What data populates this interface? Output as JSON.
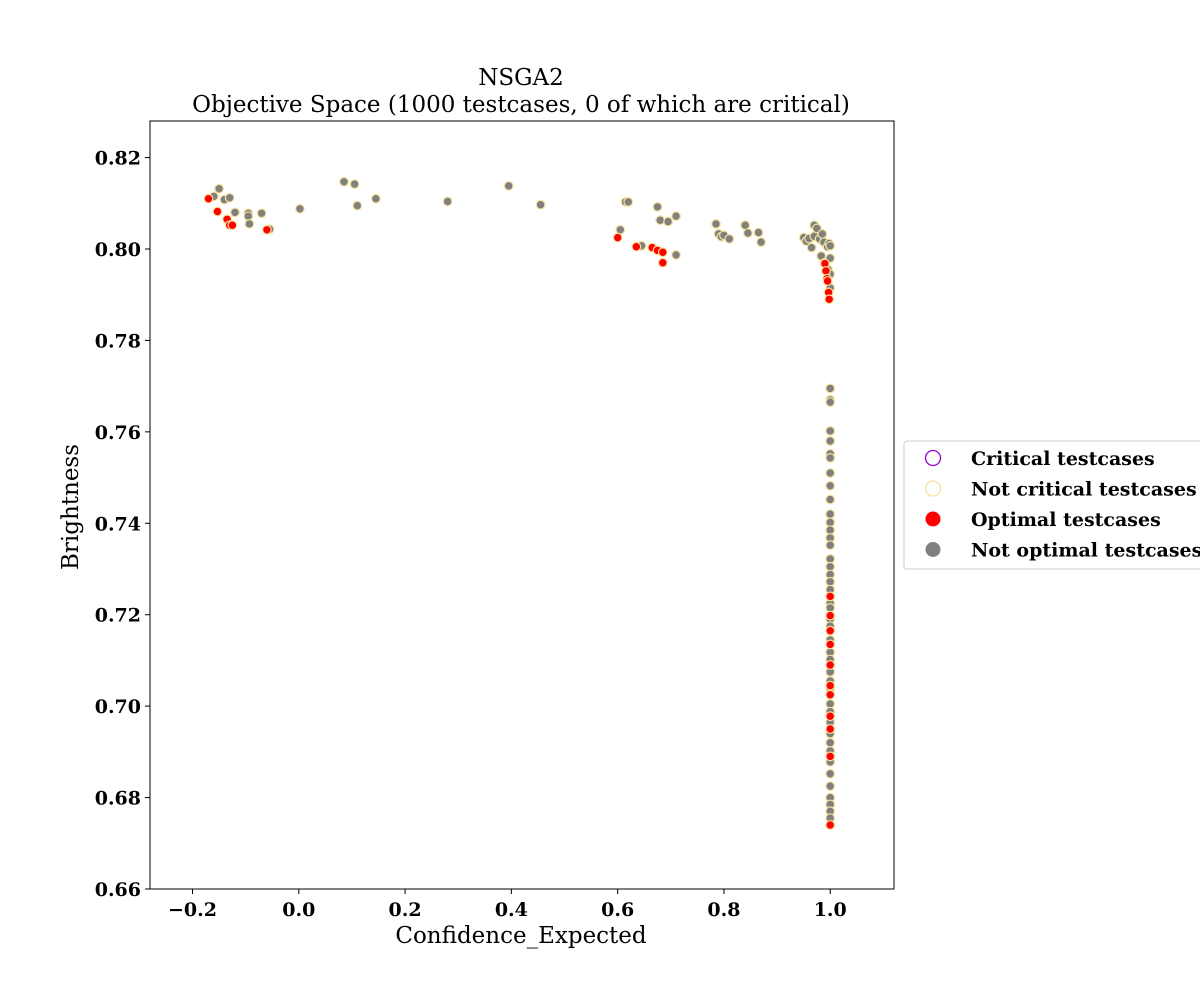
{
  "chart_data": {
    "type": "scatter",
    "title": "NSGA2",
    "subtitle": "Objective Space (1000 testcases, 0 of which are critical)",
    "xlabel": "Confidence_Expected",
    "ylabel": "Brightness",
    "xlim": [
      -0.28,
      1.12
    ],
    "ylim": [
      0.66,
      0.828
    ],
    "xticks": [
      -0.2,
      0.0,
      0.2,
      0.4,
      0.6,
      0.8,
      1.0
    ],
    "xtick_labels": [
      "−0.2",
      "0.0",
      "0.2",
      "0.4",
      "0.6",
      "0.8",
      "1.0"
    ],
    "yticks": [
      0.66,
      0.68,
      0.7,
      0.72,
      0.74,
      0.76,
      0.78,
      0.8,
      0.82
    ],
    "ytick_labels": [
      "0.66",
      "0.68",
      "0.70",
      "0.72",
      "0.74",
      "0.76",
      "0.78",
      "0.80",
      "0.82"
    ],
    "grid": false,
    "legend_placement": "right, outside plot",
    "legend": [
      {
        "label": "Critical testcases",
        "style": "hollow",
        "color": "#9400d3"
      },
      {
        "label": "Not critical testcases",
        "style": "hollow",
        "color": "#f5e39b"
      },
      {
        "label": "Optimal testcases",
        "style": "filled",
        "color": "#ff0000"
      },
      {
        "label": "Not optimal testcases",
        "style": "filled",
        "color": "#808080"
      }
    ],
    "colors": {
      "optimal_fill": "#ff0000",
      "not_optimal_fill": "#808080",
      "not_critical_edge": "#f5e39b",
      "critical_edge": "#9400d3"
    },
    "series": [
      {
        "name": "Not optimal testcases",
        "fill": "#808080",
        "edge": "#f5e39b",
        "points": [
          [
            -0.16,
            0.8115
          ],
          [
            -0.15,
            0.8132
          ],
          [
            -0.14,
            0.8108
          ],
          [
            -0.13,
            0.8112
          ],
          [
            -0.12,
            0.808
          ],
          [
            -0.095,
            0.8078
          ],
          [
            -0.095,
            0.8072
          ],
          [
            -0.093,
            0.8055
          ],
          [
            -0.07,
            0.8078
          ],
          [
            -0.055,
            0.8043
          ],
          [
            0.002,
            0.8088
          ],
          [
            0.085,
            0.8147
          ],
          [
            0.105,
            0.8142
          ],
          [
            0.11,
            0.8095
          ],
          [
            0.145,
            0.811
          ],
          [
            0.28,
            0.8104
          ],
          [
            0.395,
            0.8138
          ],
          [
            0.455,
            0.8097
          ],
          [
            0.605,
            0.8042
          ],
          [
            0.615,
            0.8103
          ],
          [
            0.62,
            0.8103
          ],
          [
            0.645,
            0.8007
          ],
          [
            0.675,
            0.8092
          ],
          [
            0.68,
            0.8063
          ],
          [
            0.695,
            0.806
          ],
          [
            0.71,
            0.8072
          ],
          [
            0.71,
            0.7987
          ],
          [
            0.785,
            0.8055
          ],
          [
            0.79,
            0.8033
          ],
          [
            0.795,
            0.8027
          ],
          [
            0.8,
            0.803
          ],
          [
            0.81,
            0.8022
          ],
          [
            0.84,
            0.8052
          ],
          [
            0.845,
            0.8035
          ],
          [
            0.865,
            0.8036
          ],
          [
            0.87,
            0.8015
          ],
          [
            0.95,
            0.8025
          ],
          [
            0.955,
            0.8017
          ],
          [
            0.96,
            0.8023
          ],
          [
            0.965,
            0.8003
          ],
          [
            0.97,
            0.8052
          ],
          [
            0.97,
            0.8028
          ],
          [
            0.975,
            0.8045
          ],
          [
            0.98,
            0.8022
          ],
          [
            0.983,
            0.7985
          ],
          [
            0.985,
            0.8033
          ],
          [
            0.988,
            0.8015
          ],
          [
            0.99,
            0.797
          ],
          [
            0.995,
            0.8005
          ],
          [
            0.996,
            0.7955
          ],
          [
            0.998,
            0.8012
          ],
          [
            1.0,
            0.8007
          ],
          [
            1.0,
            0.798
          ],
          [
            1.0,
            0.7945
          ],
          [
            1.0,
            0.7915
          ],
          [
            1.0,
            0.7695
          ],
          [
            1.0,
            0.767
          ],
          [
            1.0,
            0.7665
          ],
          [
            1.0,
            0.7602
          ],
          [
            1.0,
            0.758
          ],
          [
            1.0,
            0.7552
          ],
          [
            1.0,
            0.7543
          ],
          [
            1.0,
            0.751
          ],
          [
            1.0,
            0.7482
          ],
          [
            1.0,
            0.7452
          ],
          [
            1.0,
            0.742
          ],
          [
            1.0,
            0.7402
          ],
          [
            1.0,
            0.7385
          ],
          [
            1.0,
            0.7368
          ],
          [
            1.0,
            0.7352
          ],
          [
            1.0,
            0.7322
          ],
          [
            1.0,
            0.7305
          ],
          [
            1.0,
            0.7288
          ],
          [
            1.0,
            0.7272
          ],
          [
            1.0,
            0.7255
          ],
          [
            1.0,
            0.7225
          ],
          [
            1.0,
            0.7215
          ],
          [
            1.0,
            0.719
          ],
          [
            1.0,
            0.7175
          ],
          [
            1.0,
            0.7145
          ],
          [
            1.0,
            0.7118
          ],
          [
            1.0,
            0.7102
          ],
          [
            1.0,
            0.7075
          ],
          [
            1.0,
            0.7055
          ],
          [
            1.0,
            0.7038
          ],
          [
            1.0,
            0.7005
          ],
          [
            1.0,
            0.6988
          ],
          [
            1.0,
            0.6965
          ],
          [
            1.0,
            0.694
          ],
          [
            1.0,
            0.692
          ],
          [
            1.0,
            0.6902
          ],
          [
            1.0,
            0.6878
          ],
          [
            1.0,
            0.6852
          ],
          [
            1.0,
            0.6825
          ],
          [
            1.0,
            0.68
          ],
          [
            1.0,
            0.6785
          ],
          [
            1.0,
            0.677
          ],
          [
            1.0,
            0.6755
          ]
        ]
      },
      {
        "name": "Optimal testcases",
        "fill": "#ff0000",
        "edge": "#f5e39b",
        "points": [
          [
            -0.17,
            0.811
          ],
          [
            -0.153,
            0.8082
          ],
          [
            -0.135,
            0.8065
          ],
          [
            -0.13,
            0.8052
          ],
          [
            -0.125,
            0.8052
          ],
          [
            -0.06,
            0.8042
          ],
          [
            0.6,
            0.8025
          ],
          [
            0.635,
            0.8005
          ],
          [
            0.665,
            0.8003
          ],
          [
            0.675,
            0.7997
          ],
          [
            0.685,
            0.7993
          ],
          [
            0.685,
            0.797
          ],
          [
            0.99,
            0.7968
          ],
          [
            0.992,
            0.7952
          ],
          [
            0.994,
            0.7935
          ],
          [
            0.995,
            0.793
          ],
          [
            0.997,
            0.7905
          ],
          [
            0.998,
            0.789
          ],
          [
            1.0,
            0.724
          ],
          [
            1.0,
            0.7198
          ],
          [
            1.0,
            0.7165
          ],
          [
            1.0,
            0.7135
          ],
          [
            1.0,
            0.709
          ],
          [
            1.0,
            0.7045
          ],
          [
            1.0,
            0.7025
          ],
          [
            1.0,
            0.6978
          ],
          [
            1.0,
            0.695
          ],
          [
            1.0,
            0.689
          ],
          [
            1.0,
            0.674
          ]
        ]
      }
    ]
  }
}
